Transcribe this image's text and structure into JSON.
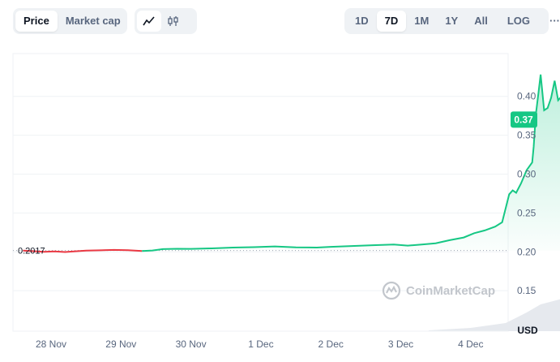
{
  "toolbar": {
    "metric_tabs": [
      {
        "label": "Price",
        "active": true
      },
      {
        "label": "Market cap",
        "active": false
      }
    ],
    "chart_type_buttons": [
      {
        "icon": "line-chart-icon",
        "active": true
      },
      {
        "icon": "candlestick-icon",
        "active": false
      }
    ],
    "range_tabs": [
      {
        "label": "1D",
        "active": false
      },
      {
        "label": "7D",
        "active": true
      },
      {
        "label": "1M",
        "active": false
      },
      {
        "label": "1Y",
        "active": false
      },
      {
        "label": "All",
        "active": false
      }
    ],
    "log_label": "LOG",
    "more_label": "···"
  },
  "watermark": "CoinMarketCap",
  "colors": {
    "up": "#16c784",
    "down": "#ea3943",
    "grid": "#eff2f5",
    "badge": "#16c784",
    "text": "#58667e"
  },
  "chart_data": {
    "type": "line",
    "x_ticks": [
      "28 Nov",
      "29 Nov",
      "30 Nov",
      "1 Dec",
      "2 Dec",
      "3 Dec",
      "4 Dec"
    ],
    "y_ticks": [
      "0.40",
      "0.35",
      "0.30",
      "0.25",
      "0.20",
      "0.15"
    ],
    "ylim": [
      0.098,
      0.455
    ],
    "y_unit": "USD",
    "baseline": 0.2017,
    "baseline_label": "0.2017",
    "current_price": 0.37,
    "current_price_label": "0.37",
    "series": [
      {
        "values": [
          [
            27.6,
            0.2017
          ],
          [
            27.75,
            0.2008
          ],
          [
            27.9,
            0.2
          ],
          [
            28.05,
            0.2005
          ],
          [
            28.2,
            0.1998
          ],
          [
            28.35,
            0.2007
          ],
          [
            28.5,
            0.2015
          ],
          [
            28.7,
            0.202
          ],
          [
            28.9,
            0.2025
          ],
          [
            29.1,
            0.2021
          ],
          [
            29.3,
            0.201
          ],
          [
            29.45,
            0.2018
          ],
          [
            29.6,
            0.2035
          ],
          [
            29.8,
            0.204
          ],
          [
            30.0,
            0.2038
          ],
          [
            30.3,
            0.2045
          ],
          [
            30.6,
            0.2055
          ],
          [
            30.9,
            0.206
          ],
          [
            31.2,
            0.207
          ],
          [
            31.5,
            0.2058
          ],
          [
            31.8,
            0.2055
          ],
          [
            32.0,
            0.2065
          ],
          [
            32.3,
            0.2075
          ],
          [
            32.6,
            0.2085
          ],
          [
            32.9,
            0.2095
          ],
          [
            33.1,
            0.208
          ],
          [
            33.3,
            0.2095
          ],
          [
            33.5,
            0.211
          ],
          [
            33.7,
            0.215
          ],
          [
            33.9,
            0.2185
          ],
          [
            34.05,
            0.224
          ],
          [
            34.2,
            0.2275
          ],
          [
            34.35,
            0.2325
          ],
          [
            34.45,
            0.238
          ],
          [
            34.55,
            0.274
          ],
          [
            34.6,
            0.279
          ],
          [
            34.65,
            0.276
          ],
          [
            34.72,
            0.288
          ],
          [
            34.8,
            0.305
          ],
          [
            34.88,
            0.315
          ],
          [
            34.9,
            0.335
          ],
          [
            34.93,
            0.376
          ],
          [
            34.97,
            0.405
          ],
          [
            35.0,
            0.428
          ],
          [
            35.02,
            0.41
          ],
          [
            35.05,
            0.382
          ],
          [
            35.1,
            0.385
          ],
          [
            35.15,
            0.398
          ],
          [
            35.2,
            0.42
          ],
          [
            35.25,
            0.395
          ],
          [
            35.3,
            0.4
          ],
          [
            35.38,
            0.392
          ],
          [
            35.45,
            0.389
          ],
          [
            35.52,
            0.396
          ],
          [
            35.6,
            0.388
          ],
          [
            35.67,
            0.382
          ],
          [
            35.72,
            0.375
          ],
          [
            35.76,
            0.37
          ]
        ]
      }
    ]
  }
}
